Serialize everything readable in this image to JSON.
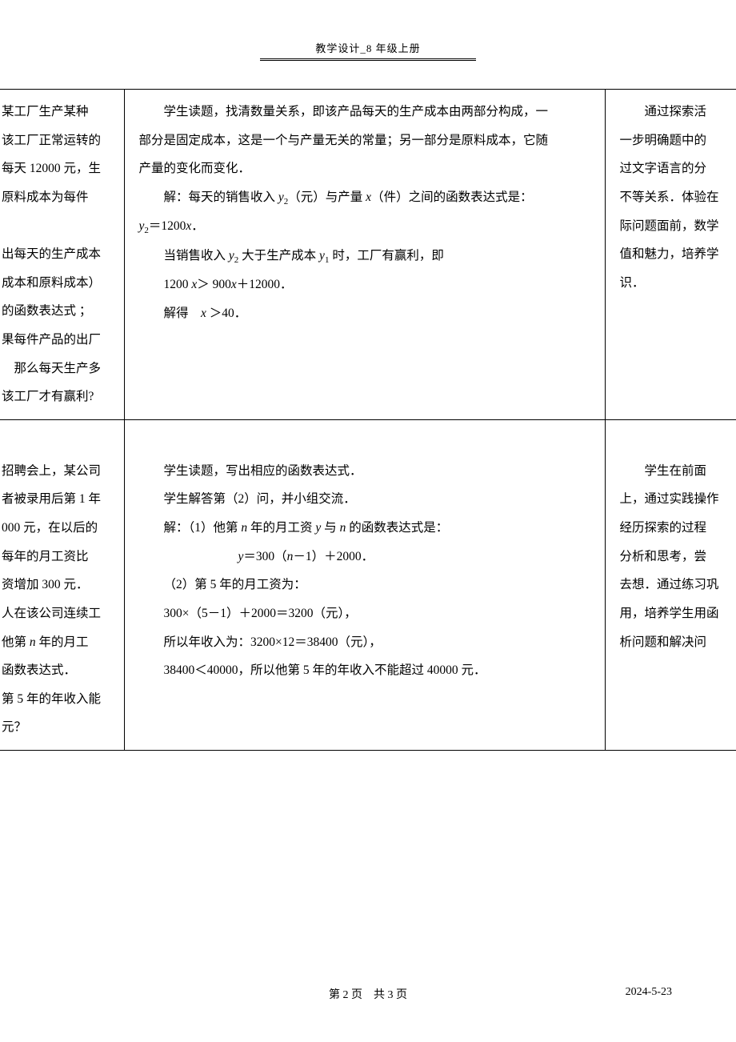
{
  "header": {
    "title": "教学设计_8 年级上册"
  },
  "table": {
    "rows": [
      {
        "col1_lines": [
          "某工厂生产某种",
          "该工厂正常运转的",
          "每天 12000 元，生",
          "原料成本为每件",
          "",
          "出每天的生产成本",
          "成本和原料成本）",
          "的函数表达式 ；",
          "果每件产品的出厂",
          "　那么每天生产多",
          "该工厂才有赢利?"
        ],
        "col2_lines": [
          {
            "text": "学生读题，找清数量关系，即该产品每天的生产成本由两部分构成，一",
            "indent": true
          },
          {
            "text": "部分是固定成本，这是一个与产量无关的常量；另一部分是原料成本，它随",
            "indent": false
          },
          {
            "text": "产量的变化而变化．",
            "indent": false
          },
          {
            "text_html": "解：每天的销售收入 <span class='italic'>y</span><span class='sub'>2</span>（元）与产量 <span class='italic'>x</span>（件）之间的函数表达式是：",
            "indent": true
          },
          {
            "text_html": "<span class='italic'>y</span><span class='sub'>2</span>＝1200<span class='italic'>x</span>．",
            "indent": false
          },
          {
            "text_html": "当销售收入 <span class='italic'>y</span><span class='sub'>2</span> 大于生产成本 <span class='italic'>y</span><span class='sub'>1</span> 时，工厂有赢利，即",
            "indent": true
          },
          {
            "text_html": "1200 <span class='italic'>x</span>＞ 900<span class='italic'>x</span>＋12000．",
            "indent": true
          },
          {
            "text_html": "解得　<span class='italic'>x</span> ＞40．",
            "indent": true
          }
        ],
        "col3_lines": [
          "　　通过探索活",
          "一步明确题中的",
          "过文字语言的分",
          "不等关系．体验在",
          "际问题面前，数学",
          "值和魅力，培养学",
          "识．"
        ]
      },
      {
        "col1_lines": [
          "",
          "招聘会上，某公司",
          "者被录用后第 1 年",
          "000 元，在以后的",
          "每年的月工资比",
          "资增加 300 元．",
          "人在该公司连续工",
          "",
          "函数表达式．",
          "第 5 年的年收入能",
          "元？"
        ],
        "col1_special": {
          "line_index": 7,
          "text_html": "他第 <span class='italic'>n</span> 年的月工"
        },
        "col2_lines": [
          {
            "text": "",
            "indent": false
          },
          {
            "text": "学生读题，写出相应的函数表达式．",
            "indent": true
          },
          {
            "text": "学生解答第（2）问，并小组交流．",
            "indent": true
          },
          {
            "text_html": "解：（1）他第 <span class='italic'>n</span> 年的月工资 <span class='italic'>y</span> 与 <span class='italic'>n</span> 的函数表达式是：",
            "indent": true
          },
          {
            "text_html": "<span class='italic'>y</span>＝300（<span class='italic'>n</span>－1）＋2000．",
            "center": true
          },
          {
            "text": "（2）第 5 年的月工资为：",
            "indent": true
          },
          {
            "text": "300×（5－1）＋2000＝3200（元），",
            "indent": true
          },
          {
            "text": "所以年收入为：3200×12＝38400（元），",
            "indent": true
          },
          {
            "text": "38400＜40000，所以他第 5 年的年收入不能超过 40000 元．",
            "indent": true
          }
        ],
        "col3_lines": [
          "",
          "　　学生在前面",
          "上，通过实践操作",
          "经历探索的过程",
          "分析和思考，尝",
          "去想．通过练习巩",
          "用，培养学生用函",
          "析问题和解决问"
        ]
      }
    ]
  },
  "footer": {
    "page": "第 2 页　共 3 页",
    "date": "2024-5-23"
  }
}
